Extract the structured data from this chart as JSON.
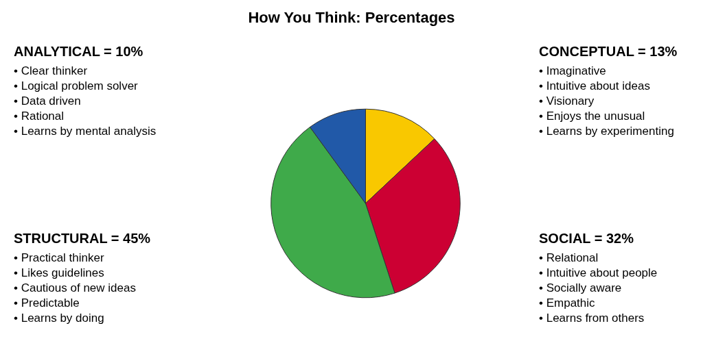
{
  "chart_data": {
    "type": "pie",
    "title": "How You Think: Percentages",
    "categories": [
      null,
      null,
      null,
      null
    ],
    "values": [
      13,
      32,
      45,
      10
    ],
    "colors": [
      "#f9c800",
      "#cc0033",
      "#3faa4a",
      "#2159a8"
    ],
    "annotations": [
      "CONCEPTUAL = 13%",
      "• Imaginative\n• Intuitive about ideas\n• Visionary\n• Enjoys the unusual\n• Learns by experimenting",
      "SOCIAL = 32%",
      "• Relational\n• Intuitive about people\n• Socially aware\n• Empathic\n• Learns from others",
      "STRUCTURAL = 45%",
      "• Practical thinker\n• Likes guidelines\n• Cautious of new ideas\n• Predictable\n• Learns by doing",
      "ANALYTICAL = 10%",
      "• Clear thinker\n• Logical problem solver\n• Data driven\n• Rational\n• Learns by mental analysis"
    ],
    "legend": false
  }
}
